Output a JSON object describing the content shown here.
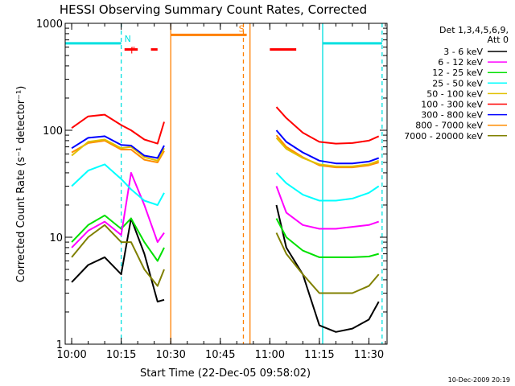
{
  "chart_data": {
    "type": "line",
    "title": "HESSI Observing Summary Count Rates, Corrected",
    "xlabel": "Start Time (22-Dec-05 09:58:02)",
    "ylabel": "Corrected Count Rate (s⁻¹ detector⁻¹)",
    "y_scale": "log",
    "ylim": [
      1,
      1000
    ],
    "xlim": [
      "09:58:02",
      "11:35:30"
    ],
    "x_ticks": [
      "10:00",
      "10:15",
      "10:30",
      "10:45",
      "11:00",
      "11:15",
      "11:30"
    ],
    "y_ticks": [
      "1",
      "10",
      "100",
      "1000"
    ],
    "legend_title": [
      "Det 1,3,4,5,6,9,",
      "Att 0"
    ],
    "legend_position": "right",
    "timestamp": "10-Dec-2009 20:19",
    "series": [
      {
        "name": "3 - 6 keV",
        "color": "#000000",
        "t": [
          "10:00",
          "10:05",
          "10:10",
          "10:15",
          "10:18",
          "10:22",
          "10:26",
          "10:28",
          "11:02",
          "11:05",
          "11:10",
          "11:15",
          "11:20",
          "11:25",
          "11:30",
          "11:33"
        ],
        "values": [
          3.8,
          5.5,
          6.5,
          4.5,
          15,
          7,
          2.5,
          2.6,
          20,
          8,
          4.5,
          1.5,
          1.3,
          1.4,
          1.7,
          2.5
        ]
      },
      {
        "name": "6 - 12 keV",
        "color": "#ff00ff",
        "t": [
          "10:00",
          "10:05",
          "10:10",
          "10:15",
          "10:18",
          "10:22",
          "10:26",
          "10:28",
          "11:02",
          "11:05",
          "11:10",
          "11:15",
          "11:20",
          "11:25",
          "11:30",
          "11:33"
        ],
        "values": [
          8,
          11.5,
          14,
          10.5,
          40,
          20,
          9,
          11,
          30,
          17,
          13,
          12,
          12,
          12.5,
          13,
          14
        ]
      },
      {
        "name": "12 - 25 keV",
        "color": "#00e000",
        "t": [
          "10:00",
          "10:05",
          "10:10",
          "10:15",
          "10:18",
          "10:22",
          "10:26",
          "10:28",
          "11:02",
          "11:05",
          "11:10",
          "11:15",
          "11:20",
          "11:25",
          "11:30",
          "11:33"
        ],
        "values": [
          9,
          13,
          16,
          12,
          15,
          9,
          6,
          8,
          15,
          10,
          7.5,
          6.5,
          6.5,
          6.5,
          6.6,
          7
        ]
      },
      {
        "name": "25 - 50 keV",
        "color": "#00ffff",
        "t": [
          "10:00",
          "10:05",
          "10:10",
          "10:15",
          "10:18",
          "10:22",
          "10:26",
          "10:28",
          "11:02",
          "11:05",
          "11:10",
          "11:15",
          "11:20",
          "11:25",
          "11:30",
          "11:33"
        ],
        "values": [
          30,
          42,
          48,
          35,
          28,
          22,
          20,
          26,
          40,
          32,
          25,
          22,
          22,
          23,
          26,
          30
        ]
      },
      {
        "name": "50 - 100 keV",
        "color": "#e0c000",
        "t": [
          "10:00",
          "10:05",
          "10:10",
          "10:15",
          "10:18",
          "10:22",
          "10:26",
          "10:28",
          "11:02",
          "11:05",
          "11:10",
          "11:15",
          "11:20",
          "11:25",
          "11:30",
          "11:33"
        ],
        "values": [
          58,
          78,
          82,
          68,
          70,
          56,
          52,
          68,
          85,
          67,
          55,
          48,
          46,
          46,
          48,
          52
        ]
      },
      {
        "name": "100 - 300 keV",
        "color": "#ff0000",
        "t": [
          "10:00",
          "10:05",
          "10:10",
          "10:15",
          "10:18",
          "10:22",
          "10:26",
          "10:28",
          "11:02",
          "11:05",
          "11:10",
          "11:15",
          "11:20",
          "11:25",
          "11:30",
          "11:33"
        ],
        "values": [
          105,
          135,
          140,
          112,
          100,
          82,
          75,
          120,
          165,
          130,
          95,
          78,
          75,
          76,
          80,
          88
        ]
      },
      {
        "name": "300 - 800 keV",
        "color": "#0000ff",
        "t": [
          "10:00",
          "10:05",
          "10:10",
          "10:15",
          "10:18",
          "10:22",
          "10:26",
          "10:28",
          "11:02",
          "11:05",
          "11:10",
          "11:15",
          "11:20",
          "11:25",
          "11:30",
          "11:33"
        ],
        "values": [
          68,
          85,
          88,
          73,
          72,
          58,
          55,
          72,
          100,
          78,
          62,
          52,
          49,
          49,
          51,
          55
        ]
      },
      {
        "name": "800 - 7000 keV",
        "color": "#ff8c00",
        "t": [
          "10:00",
          "10:05",
          "10:10",
          "10:15",
          "10:18",
          "10:22",
          "10:26",
          "10:28",
          "11:02",
          "11:05",
          "11:10",
          "11:15",
          "11:20",
          "11:25",
          "11:30",
          "11:33"
        ],
        "values": [
          62,
          76,
          80,
          66,
          66,
          53,
          50,
          64,
          90,
          70,
          56,
          47,
          45,
          45,
          47,
          50
        ]
      },
      {
        "name": "7000 - 20000 keV",
        "color": "#808000",
        "t": [
          "10:00",
          "10:05",
          "10:10",
          "10:15",
          "10:18",
          "10:22",
          "10:26",
          "10:28",
          "11:02",
          "11:05",
          "11:10",
          "11:15",
          "11:20",
          "11:25",
          "11:30",
          "11:33"
        ],
        "values": [
          6.5,
          10,
          13,
          9,
          9,
          5,
          3.5,
          5,
          11,
          7,
          4.5,
          3,
          3,
          3,
          3.5,
          4.5
        ]
      }
    ],
    "flags": [
      {
        "label": "N",
        "color": "#00e0e0",
        "y": 650,
        "segments": [
          [
            "09:58:02",
            "10:15"
          ],
          [
            "11:16",
            "11:34"
          ]
        ]
      },
      {
        "label": "F",
        "color": "#ff0000",
        "y": 570,
        "segments": [
          [
            "10:16",
            "10:20"
          ],
          [
            "10:24",
            "10:26"
          ],
          [
            "11:00",
            "11:08"
          ]
        ]
      },
      {
        "label": "S",
        "color": "#ff8000",
        "y": 780,
        "segments": [
          [
            "10:30",
            "10:53"
          ]
        ]
      }
    ],
    "vlines": [
      {
        "t": "10:15",
        "color": "#00e0e0",
        "style": "dashed"
      },
      {
        "t": "10:30",
        "color": "#ff8000",
        "style": "solid"
      },
      {
        "t": "10:52",
        "color": "#ff8000",
        "style": "dashed"
      },
      {
        "t": "10:54",
        "color": "#ff8000",
        "style": "solid"
      },
      {
        "t": "11:16",
        "color": "#00e0e0",
        "style": "solid"
      },
      {
        "t": "11:34",
        "color": "#00e0e0",
        "style": "dashed"
      }
    ]
  }
}
